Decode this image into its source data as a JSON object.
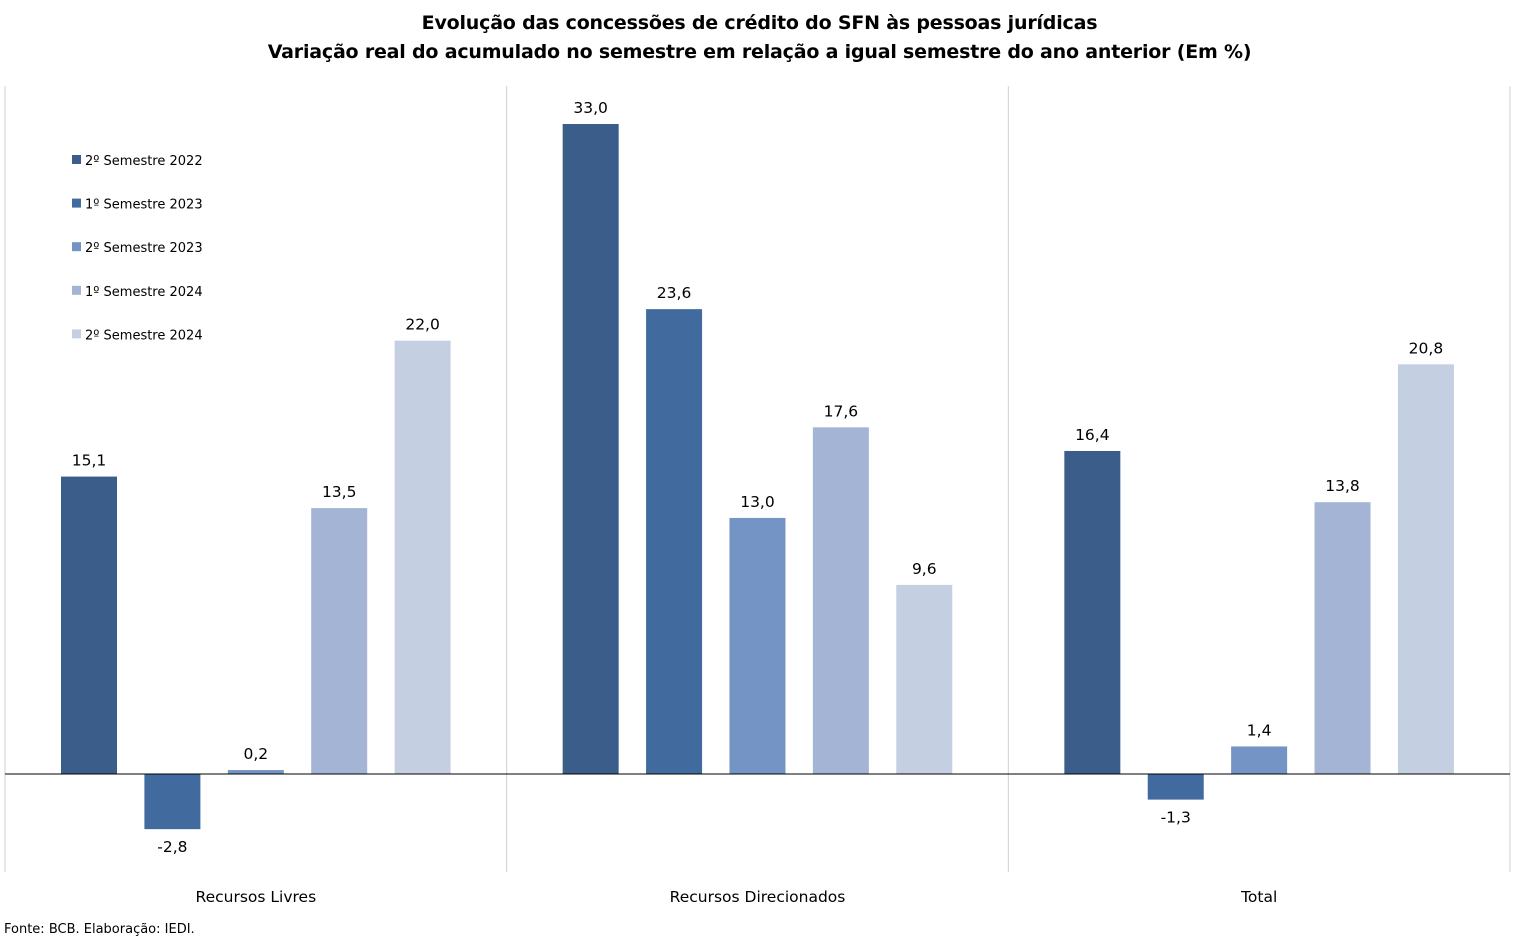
{
  "chart_data": {
    "type": "bar",
    "title": "Evolução das concessões de crédito do SFN às pessoas jurídicas",
    "subtitle": "Variação real do acumulado no semestre em relação a igual semestre do ano anterior (Em %)",
    "categories": [
      "Recursos Livres",
      "Recursos Direcionados",
      "Total"
    ],
    "series": [
      {
        "name": "2º Semestre 2022",
        "color": "#3A5D8A",
        "values": [
          15.1,
          33.0,
          16.4
        ],
        "labels": [
          "15,1",
          "33,0",
          "16,4"
        ]
      },
      {
        "name": "1º Semestre 2023",
        "color": "#416B9E",
        "values": [
          -2.8,
          23.6,
          -1.3
        ],
        "labels": [
          "-2,8",
          "23,6",
          "-1,3"
        ]
      },
      {
        "name": "2º Semestre 2023",
        "color": "#7394C4",
        "values": [
          0.2,
          13.0,
          1.4
        ],
        "labels": [
          "0,2",
          "13,0",
          "1,4"
        ]
      },
      {
        "name": "1º Semestre 2024",
        "color": "#A3B4D4",
        "values": [
          13.5,
          17.6,
          13.8
        ],
        "labels": [
          "13,5",
          "17,6",
          "13,8"
        ]
      },
      {
        "name": "2º Semestre 2024",
        "color": "#C5CFE2",
        "values": [
          22.0,
          9.6,
          20.8
        ],
        "labels": [
          "22,0",
          "9,6",
          "20,8"
        ]
      }
    ],
    "ylim": [
      -5,
      35
    ],
    "grid": false,
    "legend": "top-left",
    "xlabel": "",
    "ylabel": ""
  },
  "source": "Fonte: BCB. Elaboração: IEDI."
}
